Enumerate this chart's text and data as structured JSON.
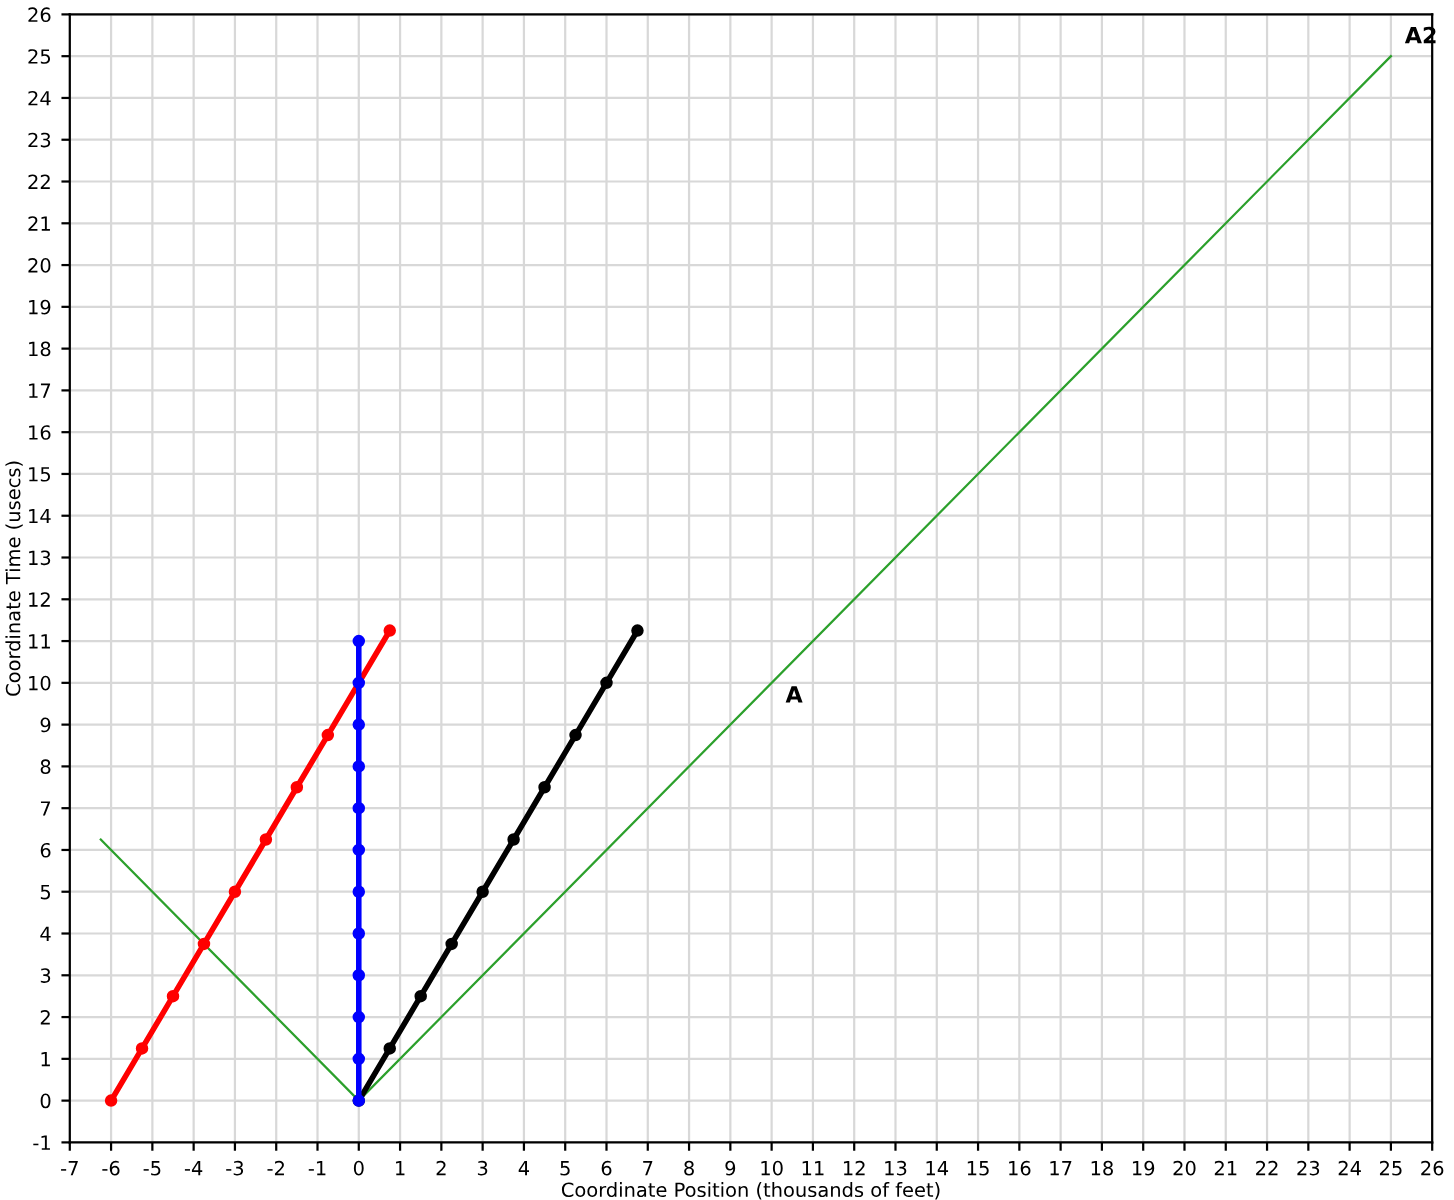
{
  "chart_data": {
    "type": "line",
    "xlabel": "Coordinate Position (thousands of feet)",
    "ylabel": "Coordinate Time (usecs)",
    "xlim": [
      -7,
      26
    ],
    "ylim": [
      -1,
      26
    ],
    "xticks": [
      -7,
      -6,
      -5,
      -4,
      -3,
      -2,
      -1,
      0,
      1,
      2,
      3,
      4,
      5,
      6,
      7,
      8,
      9,
      10,
      11,
      12,
      13,
      14,
      15,
      16,
      17,
      18,
      19,
      20,
      21,
      22,
      23,
      24,
      25,
      26
    ],
    "yticks": [
      -1,
      0,
      1,
      2,
      3,
      4,
      5,
      6,
      7,
      8,
      9,
      10,
      11,
      12,
      13,
      14,
      15,
      16,
      17,
      18,
      19,
      20,
      21,
      22,
      23,
      24,
      25,
      26
    ],
    "grid": true,
    "legend": false,
    "series": [
      {
        "color": "#2ca02c",
        "marker": "none",
        "x": [
          -6.25,
          0,
          25
        ],
        "values": [
          6.25,
          0,
          25
        ]
      },
      {
        "color": "#ff0000",
        "marker": "circle",
        "x": [
          -6,
          -5.25,
          -4.5,
          -3.75,
          -3,
          -2.25,
          -1.5,
          -0.75,
          0.75
        ],
        "values": [
          0,
          1.25,
          2.5,
          3.75,
          5,
          6.25,
          7.5,
          8.75,
          11.25
        ]
      },
      {
        "color": "#000000",
        "marker": "circle",
        "x": [
          0,
          0.75,
          1.5,
          2.25,
          3,
          3.75,
          4.5,
          5.25,
          6,
          6.75
        ],
        "values": [
          0,
          1.25,
          2.5,
          3.75,
          5,
          6.25,
          7.5,
          8.75,
          10,
          11.25
        ]
      },
      {
        "color": "#0000ff",
        "marker": "circle",
        "x": [
          0,
          0,
          0,
          0,
          0,
          0,
          0,
          0,
          0,
          0,
          0,
          0
        ],
        "values": [
          0,
          1,
          2,
          3,
          4,
          5,
          6,
          7,
          8,
          9,
          10,
          11
        ]
      }
    ],
    "annotations": [
      {
        "text": "A",
        "x": 10,
        "y": 10
      },
      {
        "text": "A2",
        "x": 25,
        "y": 25
      }
    ]
  }
}
